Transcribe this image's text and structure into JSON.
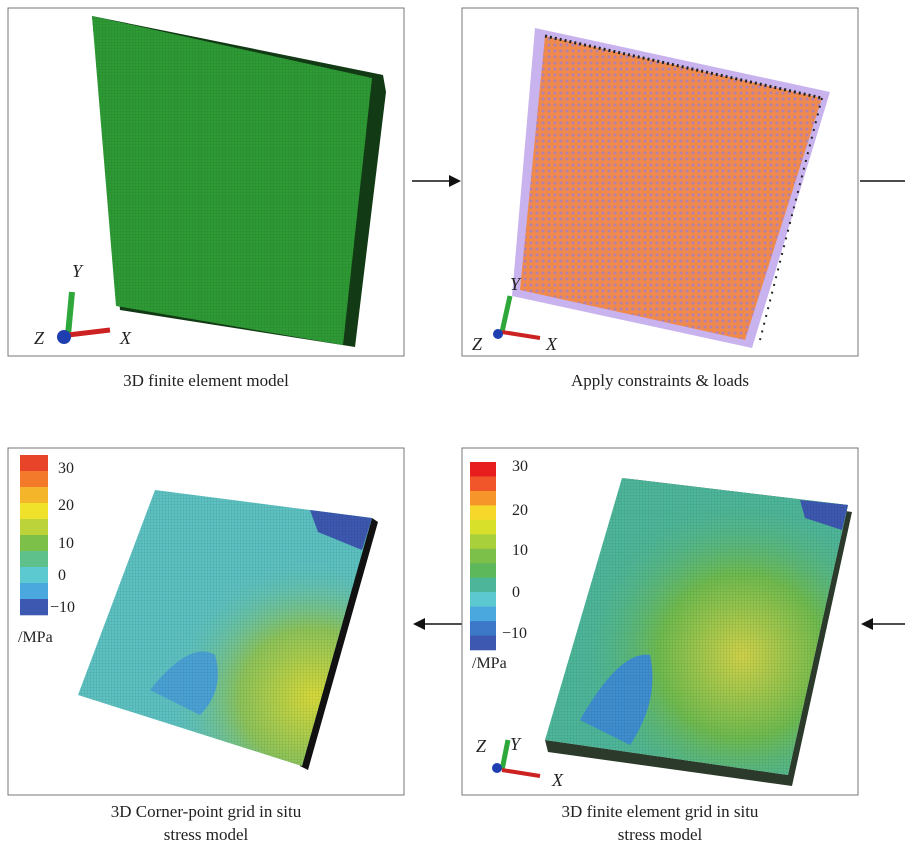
{
  "panels": [
    {
      "caption": [
        "3D finite element model"
      ],
      "axes": {
        "x": "X",
        "y": "Y",
        "z": "Z"
      }
    },
    {
      "caption": [
        "Apply constraints & loads"
      ],
      "axes": {
        "x": "X",
        "y": "Y",
        "z": "Z"
      }
    },
    {
      "caption": [
        "3D Corner-point grid in situ",
        "stress model"
      ],
      "colorbar": {
        "labels": [
          "30",
          "20",
          "10",
          "0",
          "−10"
        ],
        "unit": "/MPa"
      }
    },
    {
      "caption": [
        "3D finite element grid in situ",
        "stress model"
      ],
      "colorbar": {
        "labels": [
          "30",
          "20",
          "10",
          "0",
          "−10"
        ],
        "unit": "/MPa"
      },
      "axes": {
        "x": "X",
        "y": "Y",
        "z": "Z"
      }
    }
  ]
}
